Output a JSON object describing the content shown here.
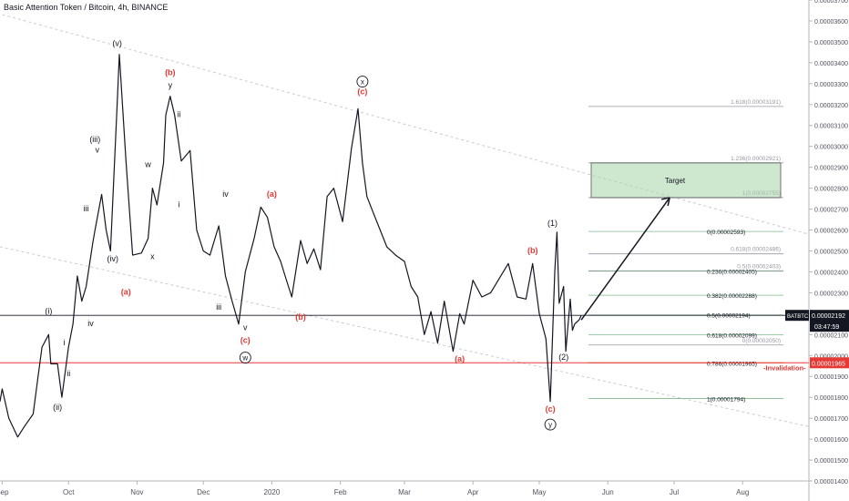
{
  "header": {
    "title": "Basic Attention Token / Bitcoin, 4h, BINANCE"
  },
  "chart_data": {
    "type": "line",
    "title": "Basic Attention Token / Bitcoin, 4h, BINANCE",
    "symbol": "BATBTC",
    "ylim": [
      1.4e-05,
      3.7e-05
    ],
    "y_ticks": [
      "0.00001400",
      "0.00001500",
      "0.00001600",
      "0.00001700",
      "0.00001800",
      "0.00001900",
      "0.00002000",
      "0.00002100",
      "0.00002200",
      "0.00002300",
      "0.00002400",
      "0.00002500",
      "0.00002600",
      "0.00002700",
      "0.00002800",
      "0.00002900",
      "0.00003000",
      "0.00003100",
      "0.00003200",
      "0.00003300",
      "0.00003400",
      "0.00003500",
      "0.00003600",
      "0.00003700"
    ],
    "x_ticks": [
      "Sep",
      "Oct",
      "Nov",
      "Dec",
      "2020",
      "Feb",
      "Mar",
      "Apr",
      "May",
      "Jun",
      "Jul",
      "Aug"
    ],
    "price_path": {
      "x": [
        "2019-08-31",
        "2019-09-01",
        "2019-09-04",
        "2019-09-08",
        "2019-09-11",
        "2019-09-15",
        "2019-09-17",
        "2019-09-19",
        "2019-09-22",
        "2019-09-23",
        "2019-09-26",
        "2019-09-28",
        "2019-10-01",
        "2019-10-03",
        "2019-10-05",
        "2019-10-07",
        "2019-10-09",
        "2019-10-12",
        "2019-10-13",
        "2019-10-16",
        "2019-10-18",
        "2019-10-20",
        "2019-10-23",
        "2019-10-24",
        "2019-10-27",
        "2019-10-30",
        "2019-11-03",
        "2019-11-06",
        "2019-11-08",
        "2019-11-10",
        "2019-11-13",
        "2019-11-14",
        "2019-11-16",
        "2019-11-18",
        "2019-11-21",
        "2019-11-25",
        "2019-11-28",
        "2019-12-01",
        "2019-12-04",
        "2019-12-06",
        "2019-12-08",
        "2019-12-11",
        "2019-12-14",
        "2019-12-17",
        "2019-12-20",
        "2019-12-24",
        "2019-12-27",
        "2019-12-30",
        "2020-01-02",
        "2020-01-05",
        "2020-01-07",
        "2020-01-10",
        "2020-01-14",
        "2020-01-17",
        "2020-01-20",
        "2020-01-23",
        "2020-01-26",
        "2020-01-29",
        "2020-02-02",
        "2020-02-06",
        "2020-02-09",
        "2020-02-11",
        "2020-02-13",
        "2020-02-16",
        "2020-02-19",
        "2020-02-22",
        "2020-02-26",
        "2020-03-01",
        "2020-03-04",
        "2020-03-07",
        "2020-03-10",
        "2020-03-13",
        "2020-03-16",
        "2020-03-19",
        "2020-03-23",
        "2020-03-26",
        "2020-03-28",
        "2020-04-01",
        "2020-04-05",
        "2020-04-09",
        "2020-04-13",
        "2020-04-17",
        "2020-04-21",
        "2020-04-25",
        "2020-04-28",
        "2020-05-01",
        "2020-05-04",
        "2020-05-06",
        "2020-05-08",
        "2020-05-09",
        "2020-05-10",
        "2020-05-12",
        "2020-05-13",
        "2020-05-15",
        "2020-05-16",
        "2020-05-17",
        "2020-05-19",
        "2020-05-20"
      ],
      "y": [
        1.78e-05,
        1.84e-05,
        1.7e-05,
        1.61e-05,
        1.66e-05,
        1.72e-05,
        1.88e-05,
        2.04e-05,
        2.1e-05,
        1.96e-05,
        1.96e-05,
        1.8e-05,
        2.04e-05,
        2.15e-05,
        2.38e-05,
        2.26e-05,
        2.33e-05,
        2.54e-05,
        2.6e-05,
        2.77e-05,
        2.6e-05,
        2.5e-05,
        3.2e-05,
        3.44e-05,
        2.93e-05,
        2.48e-05,
        2.49e-05,
        2.56e-05,
        2.8e-05,
        2.72e-05,
        2.92e-05,
        3.15e-05,
        3.24e-05,
        3.15e-05,
        2.93e-05,
        2.98e-05,
        2.6e-05,
        2.5e-05,
        2.48e-05,
        2.55e-05,
        2.62e-05,
        2.38e-05,
        2.26e-05,
        2.15e-05,
        2.4e-05,
        2.56e-05,
        2.71e-05,
        2.66e-05,
        2.52e-05,
        2.45e-05,
        2.38e-05,
        2.28e-05,
        2.55e-05,
        2.44e-05,
        2.51e-05,
        2.41e-05,
        2.76e-05,
        2.8e-05,
        2.64e-05,
        2.99e-05,
        3.18e-05,
        2.92e-05,
        2.76e-05,
        2.68e-05,
        2.6e-05,
        2.52e-05,
        2.48e-05,
        2.45e-05,
        2.33e-05,
        2.28e-05,
        2.1e-05,
        2.21e-05,
        2.06e-05,
        2.26e-05,
        2.02e-05,
        2.2e-05,
        2.15e-05,
        2.36e-05,
        2.28e-05,
        2.3e-05,
        2.37e-05,
        2.44e-05,
        2.28e-05,
        2.27e-05,
        2.44e-05,
        2.2e-05,
        2.08e-05,
        1.78e-05,
        2.4e-05,
        2.59e-05,
        2.25e-05,
        2.33e-05,
        2.02e-05,
        2.27e-05,
        2.12e-05,
        2.15e-05,
        2.17e-05,
        2.192e-05
      ]
    },
    "channel_lines": [
      {
        "x": [
          "2019-09-01",
          "2020-08-31"
        ],
        "y": [
          3.63e-05,
          2.58e-05
        ]
      },
      {
        "x": [
          "2019-08-31",
          "2020-08-31"
        ],
        "y": [
          2.52e-05,
          1.66e-05
        ]
      }
    ],
    "wave_labels": [
      {
        "text": "(i)",
        "x": "2019-09-22",
        "y": 2.2e-05,
        "color": "#131722"
      },
      {
        "text": "(ii)",
        "x": "2019-09-26",
        "y": 1.74e-05,
        "color": "#131722"
      },
      {
        "text": "i",
        "x": "2019-09-29",
        "y": 2.05e-05,
        "color": "#131722"
      },
      {
        "text": "ii",
        "x": "2019-10-01",
        "y": 1.9e-05,
        "color": "#131722"
      },
      {
        "text": "iii",
        "x": "2019-10-09",
        "y": 2.69e-05,
        "color": "#131722"
      },
      {
        "text": "iv",
        "x": "2019-10-11",
        "y": 2.14e-05,
        "color": "#131722"
      },
      {
        "text": "v",
        "x": "2019-10-14",
        "y": 2.97e-05,
        "color": "#131722"
      },
      {
        "text": "(iii)",
        "x": "2019-10-13",
        "y": 3.02e-05,
        "color": "#131722"
      },
      {
        "text": "(iv)",
        "x": "2019-10-21",
        "y": 2.45e-05,
        "color": "#131722"
      },
      {
        "text": "(v)",
        "x": "2019-10-23",
        "y": 3.48e-05,
        "color": "#131722"
      },
      {
        "text": "(a)",
        "x": "2019-10-27",
        "y": 2.29e-05,
        "color": "#e53935"
      },
      {
        "text": "w",
        "x": "2019-11-06",
        "y": 2.9e-05,
        "color": "#131722"
      },
      {
        "text": "x",
        "x": "2019-11-08",
        "y": 2.46e-05,
        "color": "#131722"
      },
      {
        "text": "(b)",
        "x": "2019-11-16",
        "y": 3.34e-05,
        "color": "#e53935"
      },
      {
        "text": "y",
        "x": "2019-11-16",
        "y": 3.28e-05,
        "color": "#131722"
      },
      {
        "text": "ii",
        "x": "2019-11-20",
        "y": 3.14e-05,
        "color": "#131722"
      },
      {
        "text": "i",
        "x": "2019-11-20",
        "y": 2.71e-05,
        "color": "#131722"
      },
      {
        "text": "iv",
        "x": "2019-12-11",
        "y": 2.76e-05,
        "color": "#131722"
      },
      {
        "text": "iii",
        "x": "2019-12-08",
        "y": 2.22e-05,
        "color": "#131722"
      },
      {
        "text": "v",
        "x": "2019-12-20",
        "y": 2.12e-05,
        "color": "#131722"
      },
      {
        "text": "(c)",
        "x": "2019-12-20",
        "y": 2.06e-05,
        "color": "#e53935"
      },
      {
        "text": "(a)",
        "x": "2020-01-01",
        "y": 2.76e-05,
        "color": "#e53935"
      },
      {
        "text": "(b)",
        "x": "2020-01-14",
        "y": 2.17e-05,
        "color": "#e53935"
      },
      {
        "text": "(c)",
        "x": "2020-02-11",
        "y": 3.25e-05,
        "color": "#e53935"
      },
      {
        "text": "(a)",
        "x": "2020-03-26",
        "y": 1.97e-05,
        "color": "#e53935"
      },
      {
        "text": "(b)",
        "x": "2020-04-28",
        "y": 2.49e-05,
        "color": "#e53935"
      },
      {
        "text": "(c)",
        "x": "2020-05-06",
        "y": 1.73e-05,
        "color": "#e53935"
      },
      {
        "text": "(1)",
        "x": "2020-05-07",
        "y": 2.62e-05,
        "color": "#131722"
      },
      {
        "text": "(2)",
        "x": "2020-05-12",
        "y": 1.98e-05,
        "color": "#131722"
      }
    ],
    "circled_labels": [
      {
        "text": "w",
        "x": "2019-12-20",
        "y": 1.99e-05
      },
      {
        "text": "x",
        "x": "2020-02-11",
        "y": 3.31e-05
      },
      {
        "text": "y",
        "x": "2020-05-06",
        "y": 1.67e-05
      }
    ],
    "fib_retracement": [
      {
        "label": "0(0.00002593)",
        "value": 2.593e-05
      },
      {
        "label": "0.236(0.00002405)",
        "value": 2.405e-05
      },
      {
        "label": "0.382(0.00002288)",
        "value": 2.288e-05
      },
      {
        "label": "0.5(0.00002194)",
        "value": 2.194e-05
      },
      {
        "label": "0.618(0.00002099)",
        "value": 2.099e-05
      },
      {
        "label": "0.786(0.00001965)",
        "value": 1.965e-05
      },
      {
        "label": "1(0.00001794)",
        "value": 1.794e-05
      }
    ],
    "fib_extension": [
      {
        "label": "1.618(0.00003191)",
        "value": 3.191e-05
      },
      {
        "label": "1.236(0.00002921)",
        "value": 2.921e-05
      },
      {
        "label": "1(0.00002755)",
        "value": 2.755e-05
      },
      {
        "label": "0.618(0.00002486)",
        "value": 2.486e-05
      },
      {
        "label": "0.5(0.00002403)",
        "value": 2.403e-05
      },
      {
        "label": "0(0.00002050)",
        "value": 2.05e-05
      }
    ],
    "target_zone": {
      "label": "Target",
      "from": 2.755e-05,
      "to": 2.921e-05
    },
    "invalidation": {
      "label": "-Invalidation-",
      "value": 1.965e-05,
      "price_label": "0.00001965",
      "color": "#e53935"
    },
    "last_price": {
      "value": 2.192e-05,
      "label": "0.00002192",
      "countdown": "03:47:59"
    }
  }
}
